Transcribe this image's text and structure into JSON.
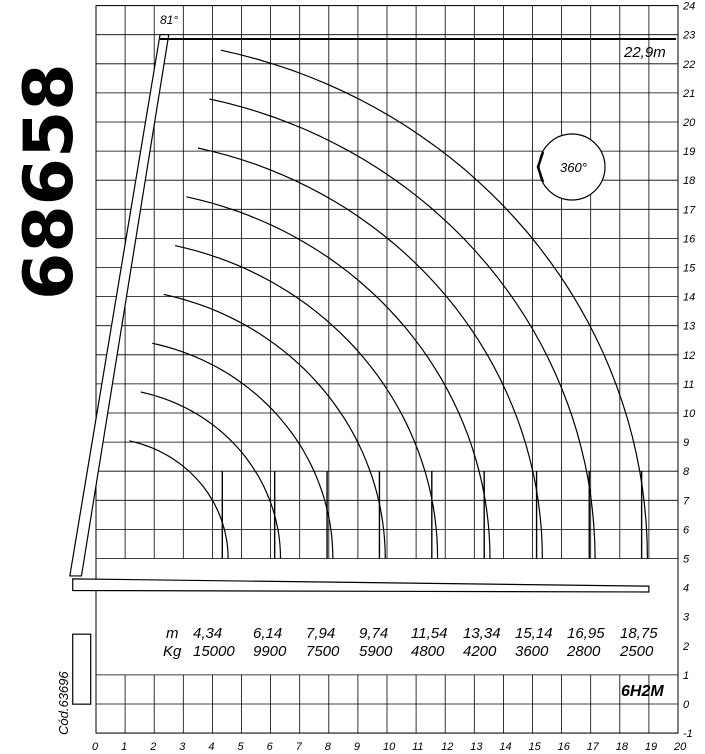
{
  "chart_data": {
    "type": "line",
    "title": "",
    "model": "68658",
    "config": "6H2M",
    "code": "Cód.63696",
    "max_angle_label": "81°",
    "max_height_label": "22,9m",
    "max_height": 22.9,
    "rotation_label": "360°",
    "xlim": [
      0,
      20
    ],
    "ylim": [
      -1,
      24
    ],
    "x_ticks": [
      "0",
      "1",
      "2",
      "3",
      "4",
      "5",
      "6",
      "7",
      "8",
      "9",
      "10",
      "11",
      "12",
      "13",
      "14",
      "15",
      "16",
      "17",
      "18",
      "19",
      "20"
    ],
    "y_ticks": [
      "-1",
      "0",
      "1",
      "2",
      "3",
      "4",
      "5",
      "6",
      "7",
      "8",
      "9",
      "10",
      "11",
      "12",
      "13",
      "14",
      "15",
      "16",
      "17",
      "18",
      "19",
      "20",
      "21",
      "22",
      "23",
      "24"
    ],
    "load_table": {
      "row_labels": [
        "m",
        "Kg"
      ],
      "reach_m": [
        "4,34",
        "6,14",
        "7,94",
        "9,74",
        "11,54",
        "13,34",
        "15,14",
        "16,95",
        "18,75"
      ],
      "capacity_kg": [
        "15000",
        "9900",
        "7500",
        "5900",
        "4800",
        "4200",
        "3600",
        "2800",
        "2500"
      ]
    },
    "series": [
      {
        "reach": 4.34,
        "capacity": 15000
      },
      {
        "reach": 6.14,
        "capacity": 9900
      },
      {
        "reach": 7.94,
        "capacity": 7500
      },
      {
        "reach": 9.74,
        "capacity": 5900
      },
      {
        "reach": 11.54,
        "capacity": 4800
      },
      {
        "reach": 13.34,
        "capacity": 4200
      },
      {
        "reach": 15.14,
        "capacity": 3600
      },
      {
        "reach": 16.95,
        "capacity": 2800
      },
      {
        "reach": 18.75,
        "capacity": 2500
      }
    ]
  }
}
